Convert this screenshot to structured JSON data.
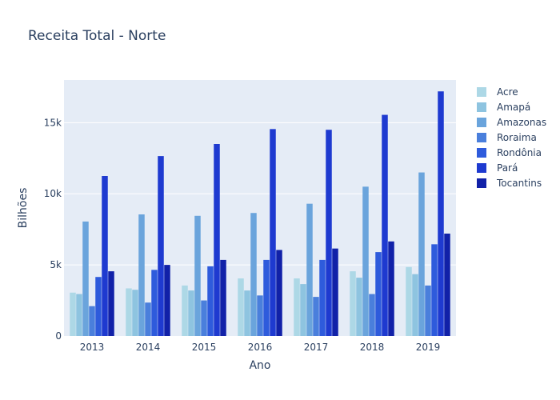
{
  "chart_data": {
    "type": "bar",
    "title": "Receita Total - Norte",
    "xlabel": "Ano",
    "ylabel": "Bilhões",
    "categories": [
      "2013",
      "2014",
      "2015",
      "2016",
      "2017",
      "2018",
      "2019"
    ],
    "ylim": [
      0,
      18000
    ],
    "yticks": [
      0,
      5000,
      10000,
      15000
    ],
    "ytick_labels": [
      "0",
      "5k",
      "10k",
      "15k"
    ],
    "grid": true,
    "legend_position": "right",
    "series": [
      {
        "name": "Acre",
        "color": "#add8e6",
        "values": [
          3050,
          3350,
          3550,
          4050,
          4050,
          4550,
          4850
        ]
      },
      {
        "name": "Amapá",
        "color": "#8ec4e0",
        "values": [
          2950,
          3250,
          3200,
          3200,
          3650,
          4100,
          4350
        ]
      },
      {
        "name": "Amazonas",
        "color": "#6aa4dc",
        "values": [
          8050,
          8550,
          8450,
          8650,
          9300,
          10500,
          11500
        ]
      },
      {
        "name": "Roraima",
        "color": "#4a7fdc",
        "values": [
          2100,
          2350,
          2500,
          2850,
          2750,
          2950,
          3550
        ]
      },
      {
        "name": "Rondônia",
        "color": "#2e5bdc",
        "values": [
          4150,
          4650,
          4900,
          5350,
          5350,
          5900,
          6450
        ]
      },
      {
        "name": "Pará",
        "color": "#1e3ad0",
        "values": [
          11250,
          12650,
          13500,
          14550,
          14500,
          15550,
          17200
        ]
      },
      {
        "name": "Tocantins",
        "color": "#1121a8",
        "values": [
          4550,
          5000,
          5350,
          6050,
          6150,
          6650,
          7200
        ]
      }
    ]
  }
}
